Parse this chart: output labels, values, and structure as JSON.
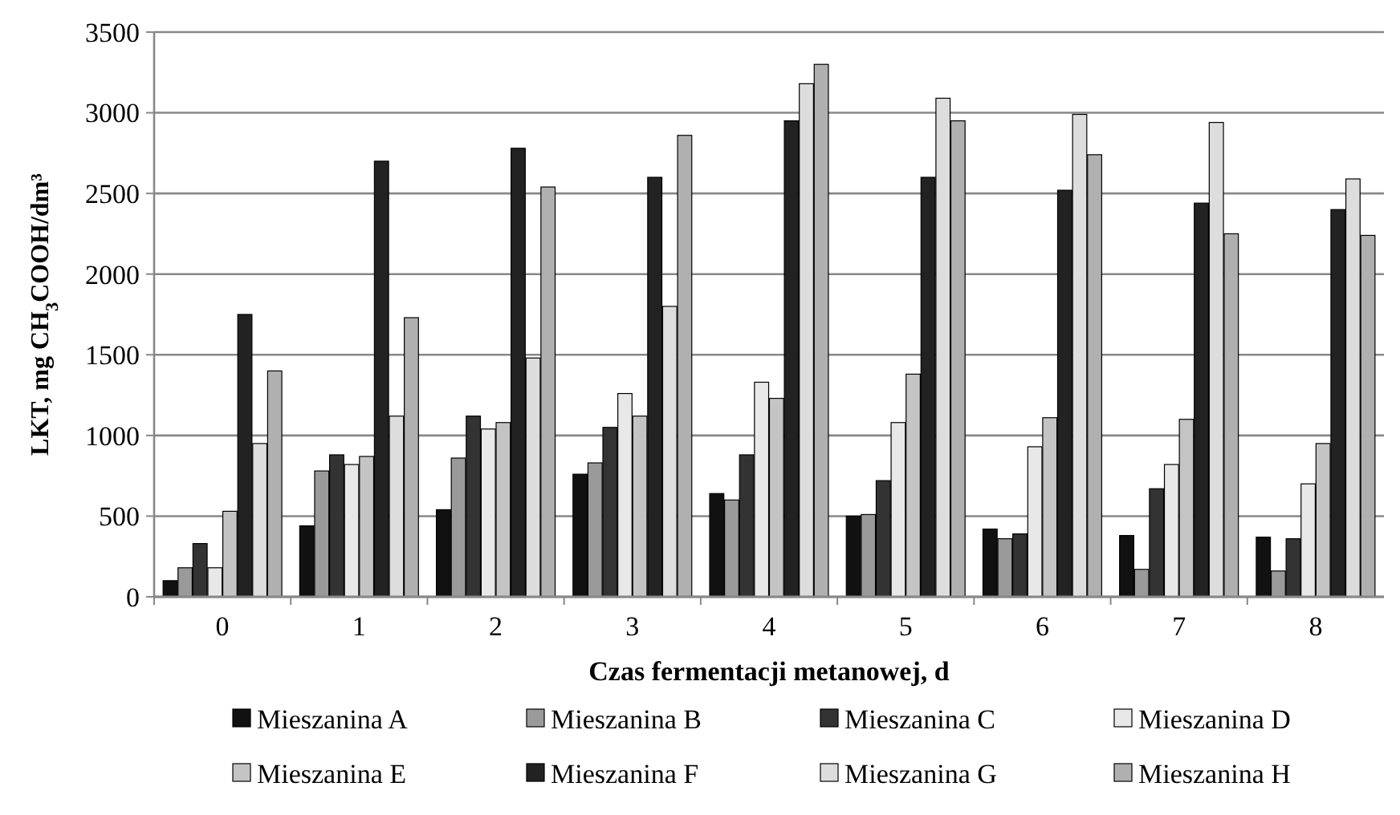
{
  "chart_data": {
    "type": "bar",
    "xlabel": "Czas fermentacji metanowej, d",
    "ylabel": "LKT, mg CH$_{3}$COOH/dm³",
    "categories": [
      "0",
      "1",
      "2",
      "3",
      "4",
      "5",
      "6",
      "7",
      "8"
    ],
    "ylim": [
      0,
      3500
    ],
    "yticks": [
      0,
      500,
      1000,
      1500,
      2000,
      2500,
      3000,
      3500
    ],
    "grid": "y",
    "legend": "bottom",
    "series": [
      {
        "name": "Mieszanina A",
        "color": "#111111",
        "values": [
          100,
          440,
          540,
          760,
          640,
          500,
          420,
          380,
          370
        ]
      },
      {
        "name": "Mieszanina B",
        "color": "#9a9a9a",
        "values": [
          180,
          780,
          860,
          830,
          600,
          510,
          360,
          170,
          160
        ]
      },
      {
        "name": "Mieszanina C",
        "color": "#333333",
        "values": [
          330,
          880,
          1120,
          1050,
          880,
          720,
          390,
          670,
          360
        ]
      },
      {
        "name": "Mieszanina D",
        "color": "#e8e8e8",
        "values": [
          180,
          820,
          1040,
          1260,
          1330,
          1080,
          930,
          820,
          700
        ]
      },
      {
        "name": "Mieszanina E",
        "color": "#c4c4c4",
        "values": [
          530,
          870,
          1080,
          1120,
          1230,
          1380,
          1110,
          1100,
          950
        ]
      },
      {
        "name": "Mieszanina F",
        "color": "#222222",
        "values": [
          1750,
          2700,
          2780,
          2600,
          2950,
          2600,
          2520,
          2440,
          2400
        ]
      },
      {
        "name": "Mieszanina G",
        "color": "#dddddd",
        "values": [
          950,
          1120,
          1480,
          1800,
          3180,
          3090,
          2990,
          2940,
          2590
        ]
      },
      {
        "name": "Mieszanina H",
        "color": "#b0b0b0",
        "values": [
          1400,
          1730,
          2540,
          2860,
          3300,
          2950,
          2740,
          2250,
          2240
        ]
      }
    ]
  }
}
